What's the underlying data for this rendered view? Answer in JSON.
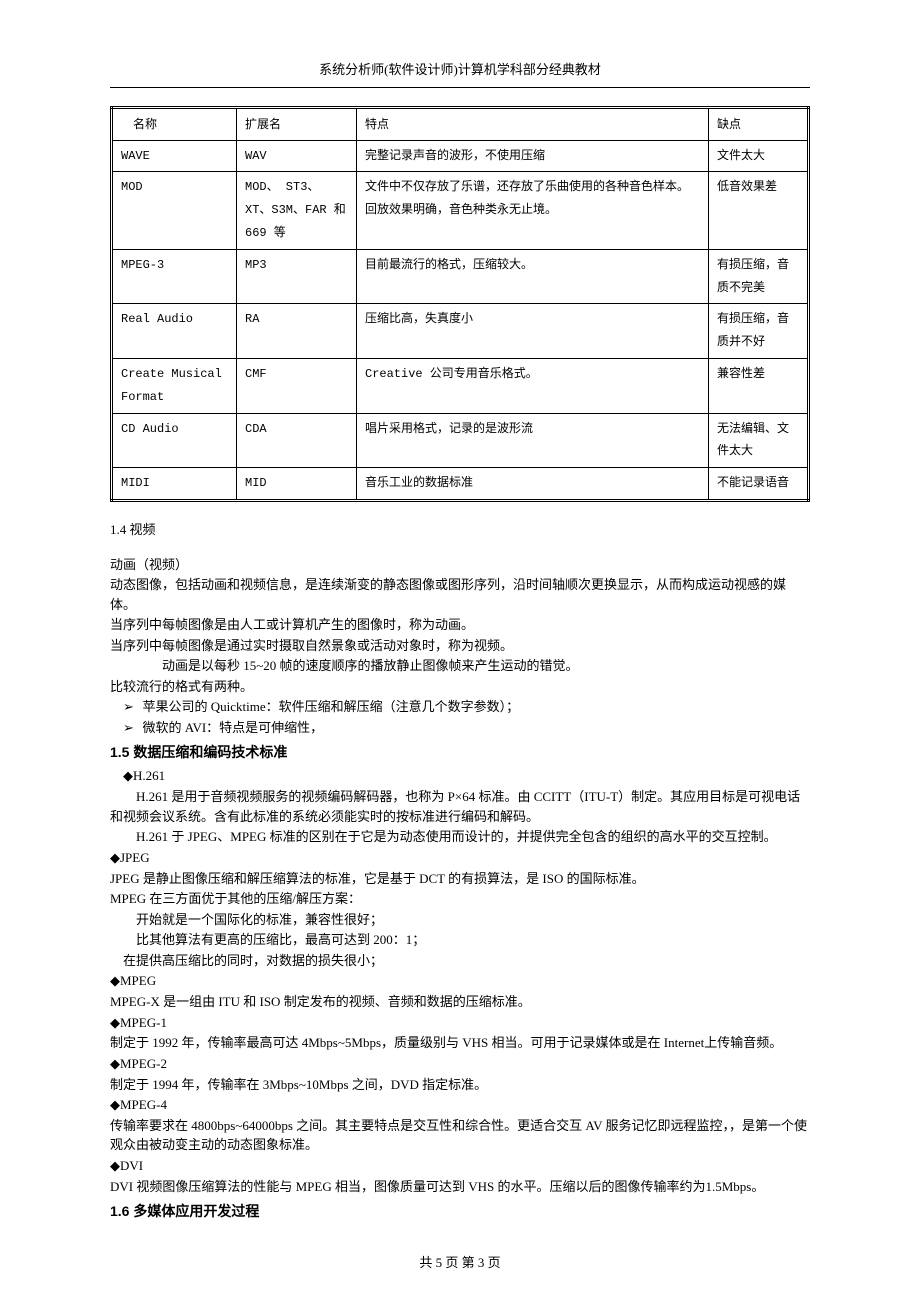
{
  "header": {
    "title": "系统分析师(软件设计师)计算机学科部分经典教材"
  },
  "table": {
    "columns": [
      "名称",
      "扩展名",
      "特点",
      "缺点"
    ],
    "rows": [
      [
        "WAVE",
        "WAV",
        "完整记录声音的波形，不使用压缩",
        "文件太大"
      ],
      [
        "MOD",
        "MOD、 ST3、 XT、S3M、FAR 和 669 等",
        "文件中不仅存放了乐谱，还存放了乐曲使用的各种音色样本。回放效果明确，音色种类永无止境。",
        "低音效果差"
      ],
      [
        "MPEG-3",
        "MP3",
        "目前最流行的格式，压缩较大。",
        "有损压缩，音质不完美"
      ],
      [
        "Real Audio",
        "RA",
        "压缩比高，失真度小",
        "有损压缩，音质并不好"
      ],
      [
        "Create Musical Format",
        "CMF",
        "Creative 公司专用音乐格式。",
        "兼容性差"
      ],
      [
        "CD Audio",
        "CDA",
        "唱片采用格式，记录的是波形流",
        "无法编辑、文件太大"
      ],
      [
        "MIDI",
        "MID",
        "音乐工业的数据标准",
        "不能记录语音"
      ]
    ],
    "col_widths": [
      "125px",
      "120px",
      "auto",
      "100px"
    ]
  },
  "sec14": {
    "heading": "1.4 视频",
    "p1": "动画（视频）",
    "p2": "动态图像，包括动画和视频信息，是连续渐变的静态图像或图形序列，沿时间轴顺次更换显示，从而构成运动视感的媒体。",
    "p3": "当序列中每帧图像是由人工或计算机产生的图像时，称为动画。",
    "p4": "当序列中每帧图像是通过实时摄取自然景象或活动对象时，称为视频。",
    "p5": "动画是以每秒 15~20 帧的速度顺序的播放静止图像帧来产生运动的错觉。",
    "p6": "比较流行的格式有两种。",
    "b1": "苹果公司的 Quicktime：软件压缩和解压缩（注意几个数字参数）；",
    "b2": "微软的 AVI：特点是可伸缩性，"
  },
  "sec15": {
    "heading": "1.5 数据压缩和编码技术标准",
    "h261_head": "◆H.261",
    "h261_p1": "H.261 是用于音频视频服务的视频编码解码器，也称为 P×64 标准。由 CCITT（ITU-T）制定。其应用目标是可视电话和视频会议系统。含有此标准的系统必须能实时的按标准进行编码和解码。",
    "h261_p2": "H.261 于 JPEG、MPEG 标准的区别在于它是为动态使用而设计的，并提供完全包含的组织的高水平的交互控制。",
    "jpeg_head": "◆JPEG",
    "jpeg_p1": "JPEG 是静止图像压缩和解压缩算法的标准，它是基于 DCT 的有损算法，是 ISO 的国际标准。",
    "jpeg_p2": "MPEG 在三方面优于其他的压缩/解压方案：",
    "jpeg_i1": "开始就是一个国际化的标准，兼容性很好；",
    "jpeg_i2": "比其他算法有更高的压缩比，最高可达到 200：1；",
    "jpeg_i3": "在提供高压缩比的同时，对数据的损失很小；",
    "mpeg_head": "◆MPEG",
    "mpeg_p1": "MPEG-X 是一组由 ITU 和 ISO 制定发布的视频、音频和数据的压缩标准。",
    "mpeg1_head": "◆MPEG-1",
    "mpeg1_p1": "制定于 1992 年，传输率最高可达 4Mbps~5Mbps，质量级别与 VHS 相当。可用于记录媒体或是在 Internet上传输音频。",
    "mpeg2_head": "◆MPEG-2",
    "mpeg2_p1": "制定于 1994 年，传输率在 3Mbps~10Mbps 之间，DVD 指定标准。",
    "mpeg4_head": "◆MPEG-4",
    "mpeg4_p1": "传输率要求在 4800bps~64000bps 之间。其主要特点是交互性和综合性。更适合交互 AV 服务记忆即远程监控，，是第一个使观众由被动变主动的动态图象标准。",
    "dvi_head": "◆DVI",
    "dvi_p1": "DVI 视频图像压缩算法的性能与 MPEG 相当，图像质量可达到 VHS 的水平。压缩以后的图像传输率约为1.5Mbps。"
  },
  "sec16": {
    "heading": "1.6  多媒体应用开发过程"
  },
  "footer": {
    "text": "共 5 页     第  3  页"
  }
}
